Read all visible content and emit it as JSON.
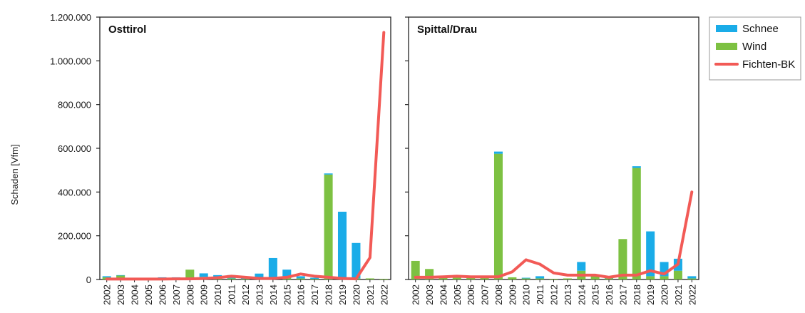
{
  "chart_data": {
    "type": "bar",
    "ylabel": "Schaden [Vfm]",
    "ylim": [
      0,
      1200000
    ],
    "yticks": [
      0,
      200000,
      400000,
      600000,
      800000,
      1000000,
      1200000
    ],
    "ytick_labels": [
      "0",
      "200.000",
      "400.000",
      "600.000",
      "800.000",
      "1.000.000",
      "1.200.000"
    ],
    "categories": [
      "2002",
      "2003",
      "2004",
      "2005",
      "2006",
      "2007",
      "2008",
      "2009",
      "2010",
      "2011",
      "2012",
      "2013",
      "2014",
      "2015",
      "2016",
      "2017",
      "2018",
      "2019",
      "2020",
      "2021",
      "2022"
    ],
    "stacked": true,
    "legend": {
      "placement": "right",
      "entries": [
        {
          "name": "Schnee",
          "color": "#1aace8",
          "kind": "bar"
        },
        {
          "name": "Wind",
          "color": "#7dc142",
          "kind": "bar"
        },
        {
          "name": "Fichten-BK",
          "color": "#f25a56",
          "kind": "line"
        }
      ]
    },
    "panels": [
      {
        "title": "Osttirol",
        "series": [
          {
            "name": "Wind",
            "values": [
              10000,
              18000,
              3000,
              3000,
              6000,
              6000,
              45000,
              12000,
              5000,
              5000,
              3000,
              5000,
              5000,
              15000,
              5000,
              3000,
              480000,
              5000,
              5000,
              5000,
              3000
            ]
          },
          {
            "name": "Schnee",
            "values": [
              5000,
              2000,
              2000,
              2000,
              4000,
              4000,
              0,
              16000,
              15000,
              15000,
              4000,
              22000,
              93000,
              30000,
              10000,
              5000,
              5000,
              305000,
              162000,
              0,
              0
            ]
          },
          {
            "name": "Fichten-BK",
            "values": [
              2000,
              2000,
              2000,
              2000,
              2000,
              3000,
              3000,
              5000,
              8000,
              15000,
              10000,
              5000,
              5000,
              10000,
              25000,
              15000,
              10000,
              5000,
              3000,
              100000,
              1130000
            ]
          }
        ]
      },
      {
        "title": "Spittal/Drau",
        "series": [
          {
            "name": "Wind",
            "values": [
              85000,
              48000,
              15000,
              10000,
              10000,
              10000,
              575000,
              10000,
              5000,
              5000,
              3000,
              5000,
              40000,
              15000,
              5000,
              185000,
              510000,
              15000,
              15000,
              40000,
              5000
            ]
          },
          {
            "name": "Schnee",
            "values": [
              0,
              0,
              0,
              0,
              0,
              0,
              10000,
              0,
              3000,
              10000,
              0,
              0,
              40000,
              5000,
              5000,
              0,
              8000,
              205000,
              65000,
              55000,
              10000
            ]
          },
          {
            "name": "Fichten-BK",
            "values": [
              10000,
              10000,
              12000,
              15000,
              12000,
              12000,
              12000,
              35000,
              90000,
              70000,
              30000,
              20000,
              20000,
              20000,
              10000,
              20000,
              20000,
              40000,
              25000,
              70000,
              400000
            ]
          }
        ]
      }
    ]
  }
}
